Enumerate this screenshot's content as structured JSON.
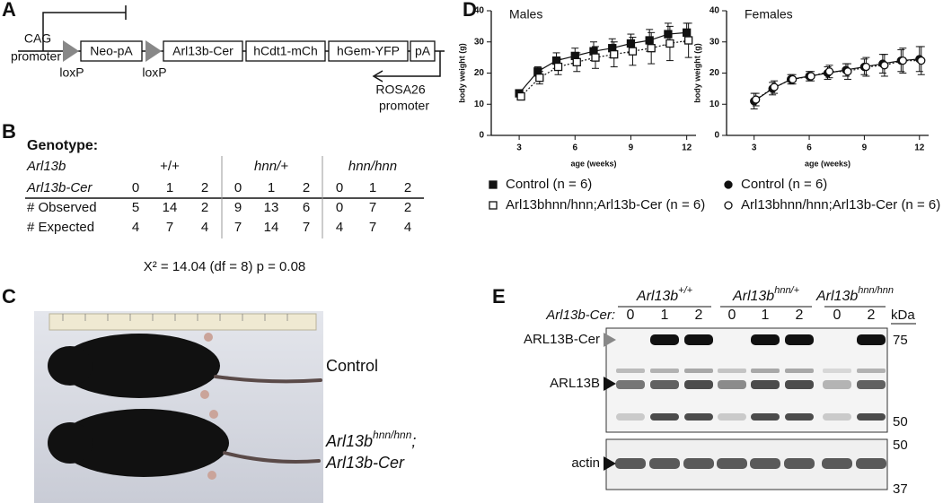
{
  "panel_labels": [
    "A",
    "B",
    "C",
    "D",
    "E"
  ],
  "construct": {
    "cag_promoter": [
      "CAG",
      "promoter"
    ],
    "loxp": [
      "loxP",
      "loxP"
    ],
    "elements": [
      "Neo-pA",
      "Arl13b-Cer",
      "hCdt1-mCh",
      "hGem-YFP",
      "pA"
    ],
    "rosa_promoter": [
      "ROSA26",
      "promoter"
    ]
  },
  "table": {
    "title": "Genotype:",
    "row_labels": [
      "Arl13b",
      "Arl13b-Cer",
      "# Observed",
      "# Expected"
    ],
    "groups": [
      "+/+",
      "hnn/+",
      "hnn/hnn"
    ],
    "cer": [
      0,
      1,
      2,
      0,
      1,
      2,
      0,
      1,
      2
    ],
    "observed": [
      5,
      14,
      2,
      9,
      13,
      6,
      0,
      7,
      2
    ],
    "expected": [
      4,
      7,
      4,
      7,
      14,
      7,
      4,
      7,
      4
    ],
    "statistic": "X² = 14.04 (df = 8) p = 0.08"
  },
  "mice": {
    "control": "Control",
    "mutant_gene": "Arl13b",
    "mutant_allele": "hnn/hnn",
    "mutant_sep": ";",
    "mutant_transgene": "Arl13b-Cer"
  },
  "blot": {
    "gene": "Arl13b",
    "groups": [
      "+/+",
      "hnn/+",
      "hnn/hnn"
    ],
    "lane_title": "Arl13b-Cer:",
    "lanes": [
      0,
      1,
      2,
      0,
      1,
      2,
      0,
      2
    ],
    "kda_title": "kDa",
    "top_markers": [
      75,
      50
    ],
    "bottom_markers": [
      50,
      37
    ],
    "band_labels": [
      "ARL13B-Cer",
      "ARL13B",
      "actin"
    ]
  },
  "chart_data": [
    {
      "type": "line",
      "title": "Males",
      "xlabel": "age (weeks)",
      "ylabel": "body weight (g)",
      "x": [
        3,
        4,
        5,
        6,
        7,
        8,
        9,
        10,
        11,
        12
      ],
      "xlim": [
        1.5,
        12.5
      ],
      "xticks": [
        3,
        6,
        9,
        12
      ],
      "ylim": [
        0,
        40
      ],
      "yticks": [
        0,
        10,
        20,
        30,
        40
      ],
      "series": [
        {
          "name": "Control (n = 6)",
          "color": "#111111",
          "marker": "square",
          "filled": true,
          "dotted": false,
          "values": [
            13.5,
            20.5,
            24,
            25.5,
            27,
            28,
            29.5,
            30.5,
            32.5,
            33
          ],
          "errors": [
            1,
            1.5,
            2.5,
            2.5,
            3,
            3,
            3,
            3.5,
            3.5,
            3
          ]
        },
        {
          "name": "Arl13bhnn/hnn;Arl13b-Cer (n = 6)",
          "color": "#111111",
          "marker": "square",
          "filled": false,
          "dotted": true,
          "values": [
            12.5,
            18.5,
            22,
            23.5,
            25,
            26,
            27,
            28,
            29.5,
            30.5
          ],
          "errors": [
            1,
            2,
            2.5,
            3,
            3.5,
            4,
            4.5,
            5,
            5.5,
            5.5
          ]
        }
      ]
    },
    {
      "type": "line",
      "title": "Females",
      "xlabel": "age (weeks)",
      "ylabel": "body weight (g)",
      "x": [
        3,
        4,
        5,
        6,
        7,
        8,
        9,
        10,
        11,
        12
      ],
      "xlim": [
        1.5,
        12.5
      ],
      "xticks": [
        3,
        6,
        9,
        12
      ],
      "ylim": [
        0,
        40
      ],
      "yticks": [
        0,
        10,
        20,
        30,
        40
      ],
      "series": [
        {
          "name": "Control (n = 6)",
          "color": "#111111",
          "marker": "circle",
          "filled": true,
          "dotted": false,
          "values": [
            11,
            15,
            18,
            19,
            20,
            21,
            22,
            23,
            24,
            24.5
          ],
          "errors": [
            2.5,
            2,
            1.5,
            1.5,
            2,
            2,
            2.5,
            3,
            3.5,
            4
          ]
        },
        {
          "name": "Arl13bhnn/hnn;Arl13b-Cer (n = 6)",
          "color": "#111111",
          "marker": "circle",
          "filled": false,
          "dotted": true,
          "values": [
            11.5,
            15.5,
            18,
            19,
            20.5,
            20.5,
            22,
            22.5,
            24,
            24
          ],
          "errors": [
            2,
            2,
            1.5,
            1.5,
            2,
            2.5,
            3,
            3.5,
            4,
            4.5
          ]
        }
      ]
    }
  ]
}
